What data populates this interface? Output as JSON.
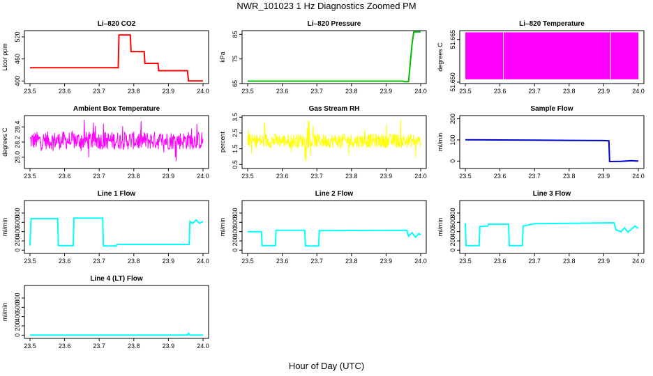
{
  "title": "NWR_101023  1 Hz Diagnostics Zoomed PM",
  "xlabel": "Hour of Day (UTC)",
  "chart_data": [
    {
      "id": "co2",
      "type": "line",
      "title": "Li–820 CO2",
      "ylabel": "Licor ppm",
      "color": "#ff0000",
      "xlim": [
        23.5,
        24.0
      ],
      "ylim": [
        393,
        537
      ],
      "xticks": [
        "23.5",
        "23.6",
        "23.7",
        "23.8",
        "23.9",
        "24.0"
      ],
      "yticks": [
        "400",
        "460",
        "520"
      ],
      "style": "steps",
      "points": [
        [
          23.5,
          436
        ],
        [
          23.755,
          436
        ],
        [
          23.757,
          525
        ],
        [
          23.79,
          525
        ],
        [
          23.792,
          480
        ],
        [
          23.83,
          480
        ],
        [
          23.832,
          448
        ],
        [
          23.87,
          448
        ],
        [
          23.872,
          428
        ],
        [
          23.955,
          428
        ],
        [
          23.958,
          400
        ],
        [
          24.0,
          400
        ]
      ]
    },
    {
      "id": "pressure",
      "type": "line",
      "title": "Li–820 Pressure",
      "ylabel": "kPa",
      "color": "#00bb00",
      "xlim": [
        23.5,
        24.0
      ],
      "ylim": [
        65,
        86.5
      ],
      "xticks": [
        "23.5",
        "23.6",
        "23.7",
        "23.8",
        "23.9",
        "24.0"
      ],
      "yticks": [
        "65",
        "75",
        "85"
      ],
      "style": "steps",
      "points": [
        [
          23.5,
          66.0
        ],
        [
          23.95,
          66.0
        ],
        [
          23.952,
          65.8
        ],
        [
          23.965,
          65.8
        ],
        [
          23.975,
          81
        ],
        [
          23.98,
          86
        ],
        [
          24.0,
          86
        ]
      ]
    },
    {
      "id": "licor-temp",
      "type": "area",
      "title": "Li–820 Temperature",
      "ylabel": "degrees C",
      "color": "#ff00ff",
      "xlim": [
        23.5,
        24.0
      ],
      "ylim": [
        51.6495,
        51.6681
      ],
      "xticks": [
        "23.5",
        "23.6",
        "23.7",
        "23.8",
        "23.9",
        "24.0"
      ],
      "yticks": [
        "51.650",
        "51.665"
      ],
      "band": [
        51.651,
        51.6675
      ]
    },
    {
      "id": "ambient-temp",
      "type": "line",
      "title": "Ambient Box Temperature",
      "ylabel": "degrees C",
      "color": "#ff00ff",
      "xlim": [
        23.5,
        24.0
      ],
      "ylim": [
        27.85,
        28.55
      ],
      "xticks": [
        "23.5",
        "23.6",
        "23.7",
        "23.8",
        "23.9",
        "24.0"
      ],
      "yticks": [
        "28.0",
        "28.2",
        "28.4"
      ],
      "style": "noise",
      "center": 28.22,
      "amplitude": 0.12,
      "spike": 0.28,
      "samples": 450
    },
    {
      "id": "gas-rh",
      "type": "line",
      "title": "Gas Stream RH",
      "ylabel": "percent",
      "color": "#ffff00",
      "xlim": [
        23.5,
        24.0
      ],
      "ylim": [
        0.25,
        3.6
      ],
      "xticks": [
        "23.5",
        "23.6",
        "23.7",
        "23.8",
        "23.9",
        "24.0"
      ],
      "yticks": [
        "0.5",
        "1.5",
        "2.5",
        "3.5"
      ],
      "style": "noise",
      "center": 2.0,
      "amplitude": 0.45,
      "spike": 1.4,
      "samples": 450
    },
    {
      "id": "sample-flow",
      "type": "line",
      "title": "Sample Flow",
      "ylabel": "ml/min",
      "color": "#0000cc",
      "xlim": [
        23.5,
        24.0
      ],
      "ylim": [
        -35,
        215
      ],
      "xticks": [
        "23.5",
        "23.6",
        "23.7",
        "23.8",
        "23.9",
        "24.0"
      ],
      "yticks": [
        "0",
        "100",
        "200"
      ],
      "style": "steps",
      "points": [
        [
          23.5,
          101
        ],
        [
          23.6,
          100
        ],
        [
          23.7,
          99
        ],
        [
          23.8,
          98
        ],
        [
          23.9,
          97
        ],
        [
          23.915,
          96
        ],
        [
          23.917,
          -2
        ],
        [
          23.95,
          -1
        ],
        [
          23.98,
          2
        ],
        [
          24.0,
          0
        ]
      ]
    },
    {
      "id": "line1-flow",
      "type": "line",
      "title": "Line 1 Flow",
      "ylabel": "ml/min",
      "color": "#00ffff",
      "xlim": [
        23.5,
        24.0
      ],
      "ylim": [
        -70,
        1070
      ],
      "xticks": [
        "23.5",
        "23.6",
        "23.7",
        "23.8",
        "23.9",
        "24.0"
      ],
      "yticks": [
        "0",
        "200",
        "400",
        "600",
        "800"
      ],
      "style": "steps",
      "points": [
        [
          23.5,
          100
        ],
        [
          23.503,
          680
        ],
        [
          23.58,
          680
        ],
        [
          23.582,
          100
        ],
        [
          23.625,
          100
        ],
        [
          23.627,
          690
        ],
        [
          23.71,
          690
        ],
        [
          23.712,
          90
        ],
        [
          23.75,
          90
        ],
        [
          23.752,
          125
        ],
        [
          23.96,
          125
        ],
        [
          23.962,
          620
        ],
        [
          23.97,
          580
        ],
        [
          23.98,
          650
        ],
        [
          23.99,
          580
        ],
        [
          24.0,
          620
        ]
      ]
    },
    {
      "id": "line2-flow",
      "type": "line",
      "title": "Line 2 Flow",
      "ylabel": "ml/min",
      "color": "#00ffff",
      "xlim": [
        23.5,
        24.0
      ],
      "ylim": [
        -70,
        1070
      ],
      "xticks": [
        "23.5",
        "23.6",
        "23.7",
        "23.8",
        "23.9",
        "24.0"
      ],
      "yticks": [
        "0",
        "200",
        "400",
        "600",
        "800"
      ],
      "style": "steps",
      "points": [
        [
          23.5,
          400
        ],
        [
          23.54,
          400
        ],
        [
          23.542,
          100
        ],
        [
          23.58,
          100
        ],
        [
          23.582,
          430
        ],
        [
          23.665,
          430
        ],
        [
          23.667,
          90
        ],
        [
          23.705,
          90
        ],
        [
          23.707,
          420
        ],
        [
          23.96,
          430
        ],
        [
          23.965,
          300
        ],
        [
          23.975,
          380
        ],
        [
          23.985,
          280
        ],
        [
          23.995,
          360
        ],
        [
          24.0,
          330
        ]
      ]
    },
    {
      "id": "line3-flow",
      "type": "line",
      "title": "Line 3 Flow",
      "ylabel": "ml/min",
      "color": "#00ffff",
      "xlim": [
        23.5,
        24.0
      ],
      "ylim": [
        -70,
        1070
      ],
      "xticks": [
        "23.5",
        "23.6",
        "23.7",
        "23.8",
        "23.9",
        "24.0"
      ],
      "yticks": [
        "0",
        "200",
        "400",
        "600",
        "800"
      ],
      "style": "steps",
      "points": [
        [
          23.5,
          580
        ],
        [
          23.502,
          100
        ],
        [
          23.54,
          100
        ],
        [
          23.542,
          510
        ],
        [
          23.565,
          520
        ],
        [
          23.567,
          560
        ],
        [
          23.625,
          560
        ],
        [
          23.627,
          100
        ],
        [
          23.665,
          100
        ],
        [
          23.667,
          520
        ],
        [
          23.68,
          540
        ],
        [
          23.7,
          570
        ],
        [
          23.8,
          580
        ],
        [
          23.93,
          590
        ],
        [
          23.935,
          440
        ],
        [
          23.95,
          400
        ],
        [
          23.96,
          480
        ],
        [
          23.97,
          390
        ],
        [
          23.98,
          450
        ],
        [
          23.99,
          520
        ],
        [
          24.0,
          470
        ]
      ]
    },
    {
      "id": "line4-flow",
      "type": "line",
      "title": "Line 4 (LT) Flow",
      "ylabel": "ml/min",
      "color": "#00ffff",
      "xlim": [
        23.5,
        24.0
      ],
      "ylim": [
        -70,
        1070
      ],
      "xticks": [
        "23.5",
        "23.6",
        "23.7",
        "23.8",
        "23.9",
        "24.0"
      ],
      "yticks": [
        "0",
        "200",
        "400",
        "600",
        "800"
      ],
      "style": "steps",
      "points": [
        [
          23.5,
          0
        ],
        [
          23.955,
          0
        ],
        [
          23.958,
          40
        ],
        [
          23.962,
          0
        ],
        [
          24.0,
          0
        ]
      ]
    }
  ]
}
